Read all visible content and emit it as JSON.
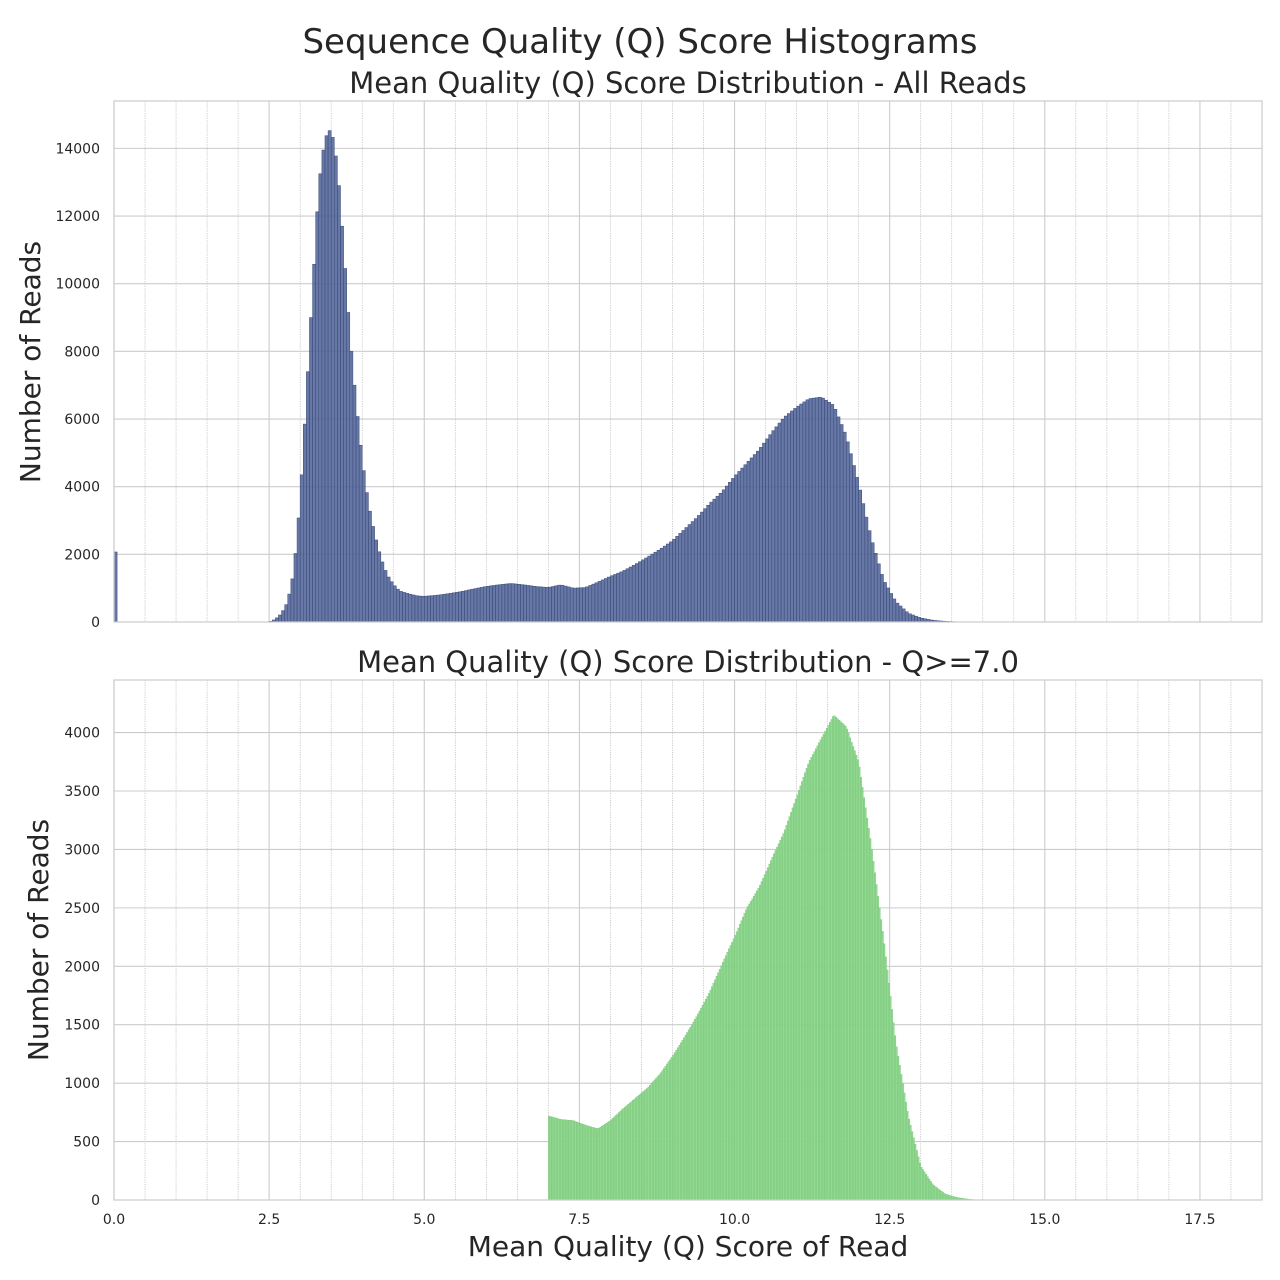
{
  "figure": {
    "suptitle": "Sequence Quality (Q) Score Histograms",
    "shared_xlabel": "Mean Quality (Q) Score of Read"
  },
  "chart_data": [
    {
      "type": "bar",
      "title": "Mean Quality (Q) Score Distribution - All Reads",
      "xlabel": "",
      "ylabel": "Number of Reads",
      "xlim": [
        0,
        18.5
      ],
      "ylim": [
        0,
        15400
      ],
      "xticks": [
        0.0,
        2.5,
        5.0,
        7.5,
        10.0,
        12.5,
        15.0,
        17.5
      ],
      "xtick_labels": [
        "0.0",
        "2.5",
        "5.0",
        "7.5",
        "10.0",
        "12.5",
        "15.0",
        "17.5"
      ],
      "yticks": [
        0,
        2000,
        4000,
        6000,
        8000,
        10000,
        12000,
        14000
      ],
      "ytick_labels": [
        "0",
        "2000",
        "4000",
        "6000",
        "8000",
        "10000",
        "12000",
        "14000"
      ],
      "bin_width": 0.05,
      "bar_color": "#4c6096",
      "grid": true,
      "x": [
        0.0,
        2.5,
        2.6,
        2.7,
        2.8,
        2.9,
        3.0,
        3.1,
        3.2,
        3.3,
        3.4,
        3.5,
        3.6,
        3.7,
        3.8,
        3.9,
        4.0,
        4.1,
        4.2,
        4.3,
        4.4,
        4.5,
        4.6,
        4.7,
        4.8,
        4.9,
        5.0,
        5.2,
        5.4,
        5.6,
        5.8,
        6.0,
        6.2,
        6.4,
        6.6,
        6.8,
        7.0,
        7.2,
        7.4,
        7.6,
        7.8,
        8.0,
        8.2,
        8.4,
        8.6,
        8.8,
        9.0,
        9.2,
        9.4,
        9.6,
        9.8,
        10.0,
        10.2,
        10.4,
        10.6,
        10.8,
        11.0,
        11.2,
        11.4,
        11.6,
        11.8,
        12.0,
        12.2,
        12.4,
        12.6,
        12.8,
        13.0,
        13.2,
        13.4,
        13.6,
        13.8,
        14.0
      ],
      "values": [
        2070,
        0,
        80,
        250,
        600,
        1500,
        3600,
        6600,
        9800,
        12900,
        14300,
        14600,
        13500,
        11100,
        8500,
        6500,
        4800,
        3500,
        2600,
        1900,
        1400,
        1120,
        920,
        860,
        810,
        770,
        760,
        790,
        840,
        900,
        980,
        1050,
        1100,
        1140,
        1100,
        1050,
        1020,
        1100,
        1000,
        1020,
        1180,
        1350,
        1500,
        1700,
        1920,
        2150,
        2400,
        2750,
        3100,
        3500,
        3850,
        4300,
        4700,
        5100,
        5600,
        6050,
        6350,
        6600,
        6650,
        6400,
        5500,
        4100,
        2500,
        1250,
        600,
        260,
        120,
        50,
        20,
        5,
        0,
        0
      ]
    },
    {
      "type": "bar",
      "title": "Mean Quality (Q) Score Distribution - Q>=7.0",
      "xlabel": "Mean Quality (Q) Score of Read",
      "ylabel": "Number of Reads",
      "xlim": [
        0,
        18.5
      ],
      "ylim": [
        0,
        4450
      ],
      "xticks": [
        0.0,
        2.5,
        5.0,
        7.5,
        10.0,
        12.5,
        15.0,
        17.5
      ],
      "xtick_labels": [
        "0.0",
        "2.5",
        "5.0",
        "7.5",
        "10.0",
        "12.5",
        "15.0",
        "17.5"
      ],
      "yticks": [
        0,
        500,
        1000,
        1500,
        2000,
        2500,
        3000,
        3500,
        4000
      ],
      "ytick_labels": [
        "0",
        "500",
        "1000",
        "1500",
        "2000",
        "2500",
        "3000",
        "3500",
        "4000"
      ],
      "bin_width": 0.025,
      "bar_color": "#8dd68d",
      "grid": true,
      "x": [
        7.0,
        7.2,
        7.4,
        7.6,
        7.8,
        8.0,
        8.2,
        8.4,
        8.6,
        8.8,
        9.0,
        9.2,
        9.4,
        9.6,
        9.8,
        10.0,
        10.2,
        10.4,
        10.6,
        10.8,
        11.0,
        11.2,
        11.4,
        11.6,
        11.8,
        12.0,
        12.2,
        12.4,
        12.6,
        12.8,
        13.0,
        13.2,
        13.4,
        13.6,
        13.8,
        14.0
      ],
      "values": [
        720,
        690,
        680,
        640,
        610,
        680,
        780,
        870,
        960,
        1080,
        1230,
        1400,
        1580,
        1780,
        2020,
        2250,
        2500,
        2680,
        2920,
        3150,
        3450,
        3750,
        3950,
        4150,
        4050,
        3750,
        3050,
        2250,
        1350,
        720,
        290,
        130,
        50,
        20,
        5,
        0
      ]
    }
  ]
}
